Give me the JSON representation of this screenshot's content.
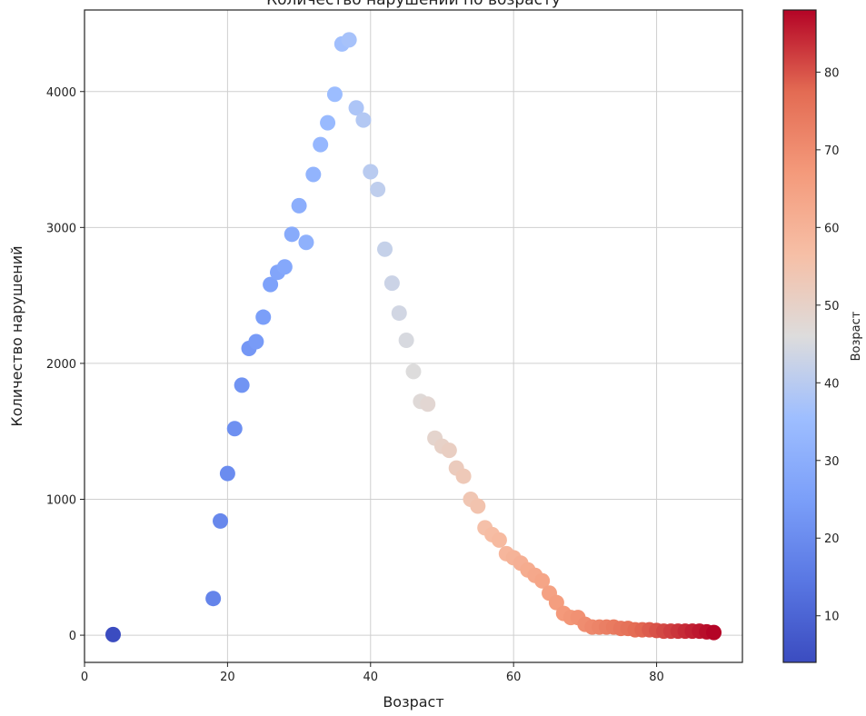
{
  "chart_data": {
    "type": "scatter",
    "title": "Количество нарушений по возрасту",
    "xlabel": "Возраст",
    "ylabel": "Количество нарушений",
    "xlim": [
      0,
      92
    ],
    "ylim": [
      -200,
      4600
    ],
    "xticks": [
      0,
      20,
      40,
      60,
      80
    ],
    "yticks": [
      0,
      1000,
      2000,
      3000,
      4000
    ],
    "grid": true,
    "colorbar": {
      "label": "Возраст",
      "range": [
        4,
        88
      ],
      "ticks": [
        10,
        20,
        30,
        40,
        50,
        60,
        70,
        80
      ],
      "colormap": "coolwarm",
      "colors": [
        "#3b4cc0",
        "#b40426"
      ]
    },
    "series": [
      {
        "x": [
          4,
          18,
          19,
          20,
          21,
          22,
          23,
          24,
          25,
          26,
          27,
          28,
          29,
          30,
          31,
          32,
          33,
          34,
          35,
          36,
          37,
          38,
          39,
          40,
          41,
          42,
          43,
          44,
          45,
          46,
          47,
          48,
          49,
          50,
          51,
          52,
          53,
          54,
          55,
          56,
          57,
          58,
          59,
          60,
          61,
          62,
          63,
          64,
          65,
          66,
          67,
          68,
          69,
          70,
          71,
          72,
          73,
          74,
          75,
          76,
          77,
          78,
          79,
          80,
          81,
          82,
          83,
          84,
          85,
          86,
          87,
          88
        ],
        "y": [
          5,
          270,
          840,
          1190,
          1520,
          1840,
          2110,
          2160,
          2340,
          2580,
          2670,
          2710,
          2950,
          3160,
          2890,
          3390,
          3610,
          3770,
          3980,
          4350,
          4380,
          3880,
          3790,
          3410,
          3280,
          2840,
          2590,
          2370,
          2170,
          1940,
          1720,
          1700,
          1450,
          1390,
          1360,
          1230,
          1170,
          1000,
          950,
          790,
          740,
          700,
          600,
          570,
          530,
          480,
          440,
          400,
          310,
          240,
          160,
          130,
          130,
          80,
          60,
          60,
          60,
          60,
          50,
          50,
          40,
          40,
          40,
          35,
          30,
          30,
          30,
          30,
          30,
          30,
          25,
          20
        ]
      }
    ]
  }
}
